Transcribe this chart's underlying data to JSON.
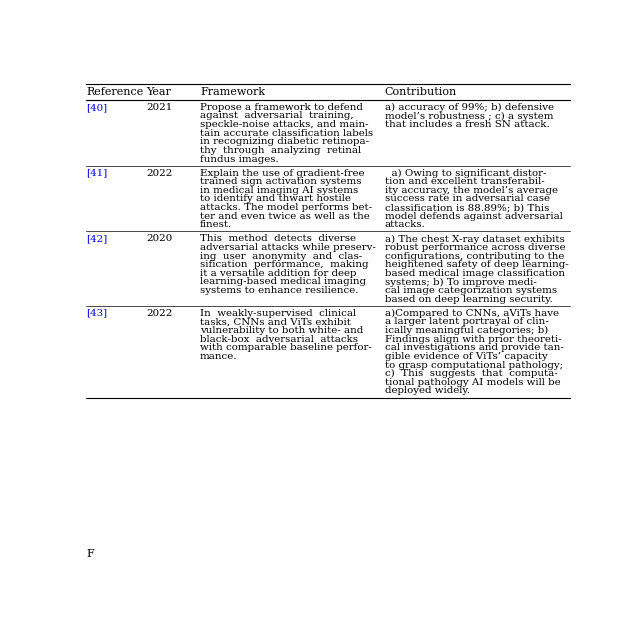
{
  "title": "F",
  "headers": [
    "Reference",
    "Year",
    "Framework",
    "Contribution"
  ],
  "rows": [
    {
      "ref": "[40]",
      "year": "2021",
      "framework": [
        "Propose a framework to defend",
        "against  adversarial  training,",
        "speckle-noise attacks, and main-",
        "tain accurate classification labels",
        "in recognizing diabetic retinopa-",
        "thy  through  analyzing  retinal",
        "fundus images."
      ],
      "contribution": [
        "a) accuracy of 99%; b) defensive",
        "model’s robustness ; c) a system",
        "that includes a fresh SN attack."
      ]
    },
    {
      "ref": "[41]",
      "year": "2022",
      "framework": [
        "Explain the use of gradient-free",
        "trained sign activation systems",
        "in medical imaging AI systems",
        "to identify and thwart hostile",
        "attacks. The model performs bet-",
        "ter and even twice as well as the",
        "finest."
      ],
      "contribution": [
        "  a) Owing to significant distor-",
        "tion and excellent transferabil-",
        "ity accuracy, the model’s average",
        "success rate in adversarial case",
        "classification is 88.89%; b) This",
        "model defends against adversarial",
        "attacks."
      ]
    },
    {
      "ref": "[42]",
      "year": "2020",
      "framework": [
        "This  method  detects  diverse",
        "adversarial attacks while preserv-",
        "ing  user  anonymity  and  clas-",
        "sification  performance,  making",
        "it a versatile addition for deep",
        "learning-based medical imaging",
        "systems to enhance resilience."
      ],
      "contribution": [
        "a) The chest X-ray dataset exhibits",
        "robust performance across diverse",
        "configurations, contributing to the",
        "heightened safety of deep learning-",
        "based medical image classification",
        "systems; b) To improve medi-",
        "cal image categorization systems",
        "based on deep learning security."
      ]
    },
    {
      "ref": "[43]",
      "year": "2022",
      "framework": [
        "In  weakly-supervised  clinical",
        "tasks, CNNs and ViTs exhibit",
        "vulnerability to both white- and",
        "black-box  adversarial  attacks",
        "with comparable baseline perfor-",
        "mance."
      ],
      "contribution": [
        "a)Compared to CNNs, aViTs have",
        "a larger latent portrayal of clin-",
        "ically meaningful categories; b)",
        "Findings align with prior theoreti-",
        "cal investigations and provide tan-",
        "gible evidence of ViTs’ capacity",
        "to grasp computational pathology;",
        "c)  This  suggests  that  computa-",
        "tional pathology AI models will be",
        "deployed widely."
      ]
    }
  ],
  "ref_color": "#0000EE",
  "text_color": "#000000",
  "header_color": "#000000",
  "bg_color": "#FFFFFF",
  "line_color": "#000000",
  "font_size": 7.4,
  "header_font_size": 8.0,
  "figsize": [
    6.4,
    6.39
  ]
}
